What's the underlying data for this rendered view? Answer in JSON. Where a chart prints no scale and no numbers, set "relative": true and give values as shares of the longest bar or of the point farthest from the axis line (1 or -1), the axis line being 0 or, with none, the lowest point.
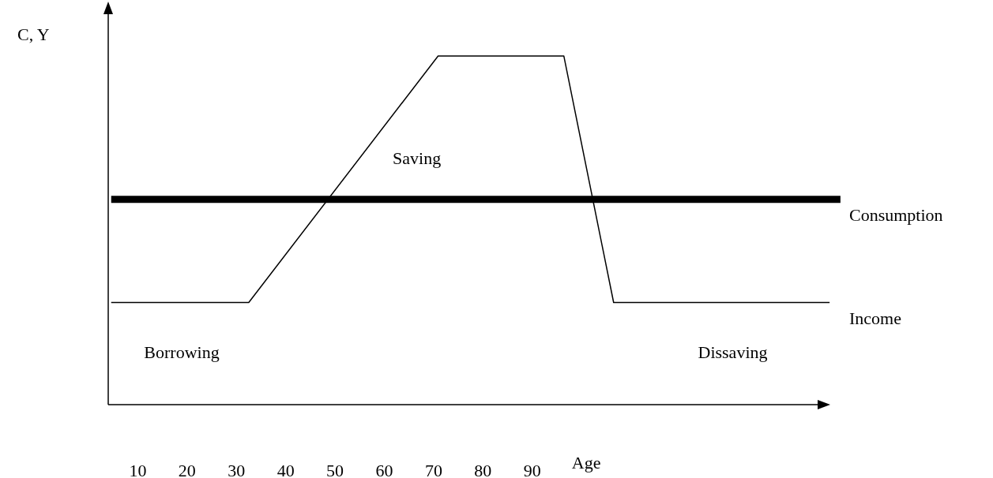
{
  "chart_data": {
    "type": "line",
    "relative": true,
    "ylabel": "C, Y",
    "xlabel": "Age",
    "xlim": [
      4,
      153
    ],
    "xticks": [
      10,
      20,
      30,
      40,
      50,
      60,
      70,
      80,
      90
    ],
    "grid": false,
    "legend": false,
    "marker": "none",
    "line_style": "solid",
    "series": [
      {
        "name": "Consumption",
        "color": "#000000",
        "x": [
          4.6,
          152.5
        ],
        "values": [
          0.589,
          0.589
        ]
      },
      {
        "name": "Income",
        "color": "#000000",
        "x": [
          4.6,
          32.5,
          70.9,
          96.4,
          106.5,
          150.3
        ],
        "values": [
          0.293,
          0.293,
          1,
          1,
          0.293,
          0.293
        ]
      }
    ],
    "annotations": [
      "Borrowing",
      "Saving",
      "Dissaving"
    ]
  }
}
